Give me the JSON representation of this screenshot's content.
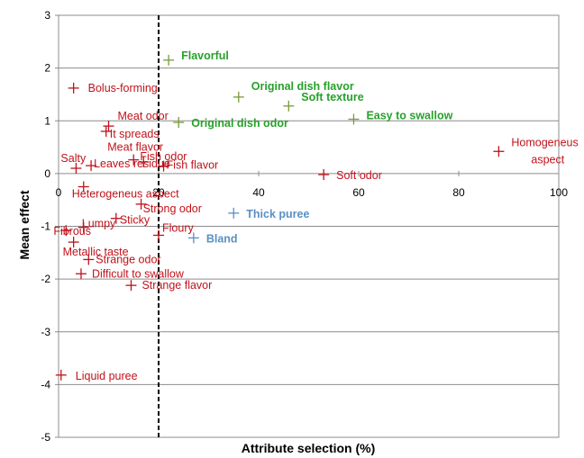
{
  "chart_data": {
    "type": "scatter",
    "title": "",
    "xlabel": "Attribute selection (%)",
    "ylabel": "Mean effect",
    "xlim": [
      0,
      100
    ],
    "ylim": [
      -5,
      3
    ],
    "xticks": [
      0,
      20,
      40,
      60,
      80,
      100
    ],
    "yticks": [
      -5,
      -4,
      -3,
      -2,
      -1,
      0,
      1,
      2,
      3
    ],
    "grid": "horizontal",
    "reference_line": {
      "x": 20,
      "style": "dashed"
    },
    "colors": {
      "red": "#c0121a",
      "green": "#27a12a",
      "blue": "#5a8fc4",
      "olive": "#7a9a3a"
    },
    "points": [
      {
        "label": "Flavorful",
        "x": 22,
        "y": 2.15,
        "color": "green",
        "bold": true
      },
      {
        "label": "Original dish flavor",
        "x": 36,
        "y": 1.45,
        "color": "green",
        "bold": true
      },
      {
        "label": "Soft texture",
        "x": 46,
        "y": 1.28,
        "color": "green",
        "bold": true
      },
      {
        "label": "Original dish odor",
        "x": 24,
        "y": 0.97,
        "color": "green",
        "bold": true
      },
      {
        "label": "Easy to swallow",
        "x": 59,
        "y": 1.03,
        "color": "green",
        "bold": true
      },
      {
        "label": "Thick puree",
        "x": 35,
        "y": -0.75,
        "color": "blue",
        "bold": true
      },
      {
        "label": "Bland",
        "x": 27,
        "y": -1.22,
        "color": "blue",
        "bold": true
      },
      {
        "label": "Homogeneus aspect",
        "x": 88,
        "y": 0.42,
        "color": "red",
        "bold": false
      },
      {
        "label": "Soft odor",
        "x": 53,
        "y": -0.02,
        "color": "red",
        "bold": false
      },
      {
        "label": "Bolus-forming",
        "x": 3,
        "y": 1.62,
        "color": "red",
        "bold": false
      },
      {
        "label": "Meat odor",
        "x": 10,
        "y": 0.9,
        "color": "red",
        "bold": false
      },
      {
        "label": "It spreads",
        "x": 9.5,
        "y": 0.8,
        "color": "red",
        "bold": false
      },
      {
        "label": "Meat flavor",
        "x": 15,
        "y": 0.26,
        "color": "red",
        "bold": false
      },
      {
        "label": "Fish odor",
        "x": 17,
        "y": 0.22,
        "color": "red",
        "bold": false
      },
      {
        "label": "Fish flavor",
        "x": 21,
        "y": 0.14,
        "color": "red",
        "bold": false
      },
      {
        "label": "Salty",
        "x": 3.5,
        "y": 0.1,
        "color": "red",
        "bold": false
      },
      {
        "label": "Leaves residue",
        "x": 6.5,
        "y": 0.15,
        "color": "red",
        "bold": false
      },
      {
        "label": "Heterogeneus aspect",
        "x": 5,
        "y": -0.25,
        "color": "red",
        "bold": false
      },
      {
        "label": "Strong odor",
        "x": 16.5,
        "y": -0.58,
        "color": "red",
        "bold": false
      },
      {
        "label": "Sticky",
        "x": 11.5,
        "y": -0.85,
        "color": "red",
        "bold": false
      },
      {
        "label": "Lumpy",
        "x": 5,
        "y": -1.02,
        "color": "red",
        "bold": false
      },
      {
        "label": "Fibrous",
        "x": 1.5,
        "y": -1.08,
        "color": "red",
        "bold": false
      },
      {
        "label": "Floury",
        "x": 20,
        "y": -1.17,
        "color": "red",
        "bold": false
      },
      {
        "label": "Metallic taste",
        "x": 3,
        "y": -1.3,
        "color": "red",
        "bold": false
      },
      {
        "label": "Strange odor",
        "x": 6,
        "y": -1.63,
        "color": "red",
        "bold": false
      },
      {
        "label": "Difficult to swallow",
        "x": 4.5,
        "y": -1.9,
        "color": "red",
        "bold": false
      },
      {
        "label": "Strange flavor",
        "x": 14.5,
        "y": -2.12,
        "color": "red",
        "bold": false
      },
      {
        "label": "Liquid puree",
        "x": 0.5,
        "y": -3.82,
        "color": "red",
        "bold": false
      }
    ]
  }
}
